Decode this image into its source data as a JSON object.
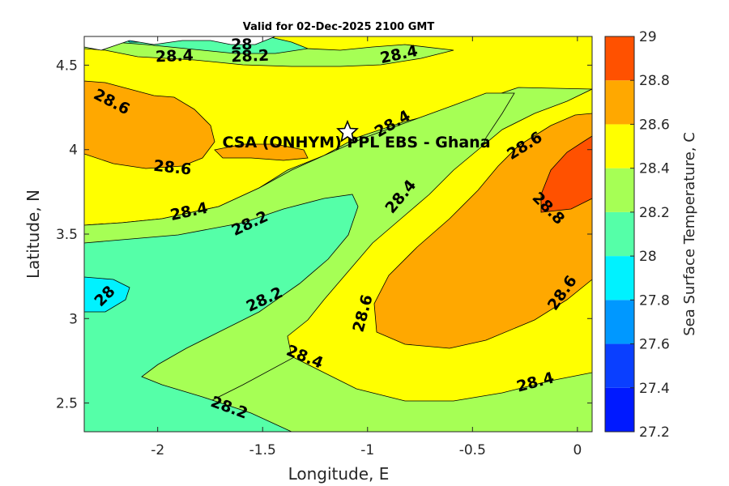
{
  "chart_data": {
    "type": "heatmap",
    "title": "Valid for 02-Dec-2025 2100 GMT",
    "xlabel": "Longitude, E",
    "ylabel": "Latitude, N",
    "xlim": [
      -2.35,
      0.07
    ],
    "ylim": [
      2.33,
      4.67
    ],
    "xticks": [
      -2,
      -1.5,
      -1,
      -0.5,
      0
    ],
    "xtick_labels": [
      "-2",
      "-1.5",
      "-1",
      "-0.5",
      "0"
    ],
    "yticks": [
      2.5,
      3,
      3.5,
      4,
      4.5
    ],
    "ytick_labels": [
      "2.5",
      "3",
      "3.5",
      "4",
      "4.5"
    ],
    "colorbar": {
      "label": "Sea Surface Temperature, C",
      "levels": [
        27.2,
        27.4,
        27.6,
        27.8,
        28,
        28.2,
        28.4,
        28.6,
        28.8,
        29
      ],
      "level_labels": [
        "27.2",
        "27.4",
        "27.6",
        "27.8",
        "28",
        "28.2",
        "28.4",
        "28.6",
        "28.8",
        "29"
      ],
      "colors": [
        "#0019ff",
        "#0a3fff",
        "#0098ff",
        "#00f2ff",
        "#55ffa8",
        "#a6ff55",
        "#ffff00",
        "#ffa800",
        "#ff5100"
      ]
    },
    "site": {
      "label": "CSA (ONHYM) PPL EBS  - Ghana",
      "lon": -1.1,
      "lat": 4.11
    },
    "contour_labels": [
      {
        "text": "28.4",
        "lon": -1.92,
        "lat": 4.55,
        "angle": -2
      },
      {
        "text": "28",
        "lon": -1.6,
        "lat": 4.62,
        "angle": 0
      },
      {
        "text": "28.2",
        "lon": -1.56,
        "lat": 4.55,
        "angle": -2
      },
      {
        "text": "28.4",
        "lon": -0.85,
        "lat": 4.56,
        "angle": -12
      },
      {
        "text": "28.6",
        "lon": -2.22,
        "lat": 4.28,
        "angle": 27
      },
      {
        "text": "28.6",
        "lon": -1.93,
        "lat": 3.89,
        "angle": 6
      },
      {
        "text": "28.4",
        "lon": -0.88,
        "lat": 4.15,
        "angle": -30
      },
      {
        "text": "28.6",
        "lon": -0.25,
        "lat": 4.02,
        "angle": -32
      },
      {
        "text": "28.8",
        "lon": -0.14,
        "lat": 3.65,
        "angle": 45
      },
      {
        "text": "28.4",
        "lon": -1.85,
        "lat": 3.63,
        "angle": -12
      },
      {
        "text": "28.2",
        "lon": -1.56,
        "lat": 3.56,
        "angle": -25
      },
      {
        "text": "28.4",
        "lon": -0.84,
        "lat": 3.72,
        "angle": -50
      },
      {
        "text": "28",
        "lon": -2.25,
        "lat": 3.13,
        "angle": -45
      },
      {
        "text": "28.2",
        "lon": -1.49,
        "lat": 3.11,
        "angle": -25
      },
      {
        "text": "28.6",
        "lon": -1.02,
        "lat": 3.03,
        "angle": -75
      },
      {
        "text": "28.6",
        "lon": -0.07,
        "lat": 3.15,
        "angle": -55
      },
      {
        "text": "28.4",
        "lon": -1.3,
        "lat": 2.77,
        "angle": 22
      },
      {
        "text": "28.4",
        "lon": -0.2,
        "lat": 2.62,
        "angle": -15
      },
      {
        "text": "28.2",
        "lon": -1.66,
        "lat": 2.47,
        "angle": 20
      }
    ]
  }
}
